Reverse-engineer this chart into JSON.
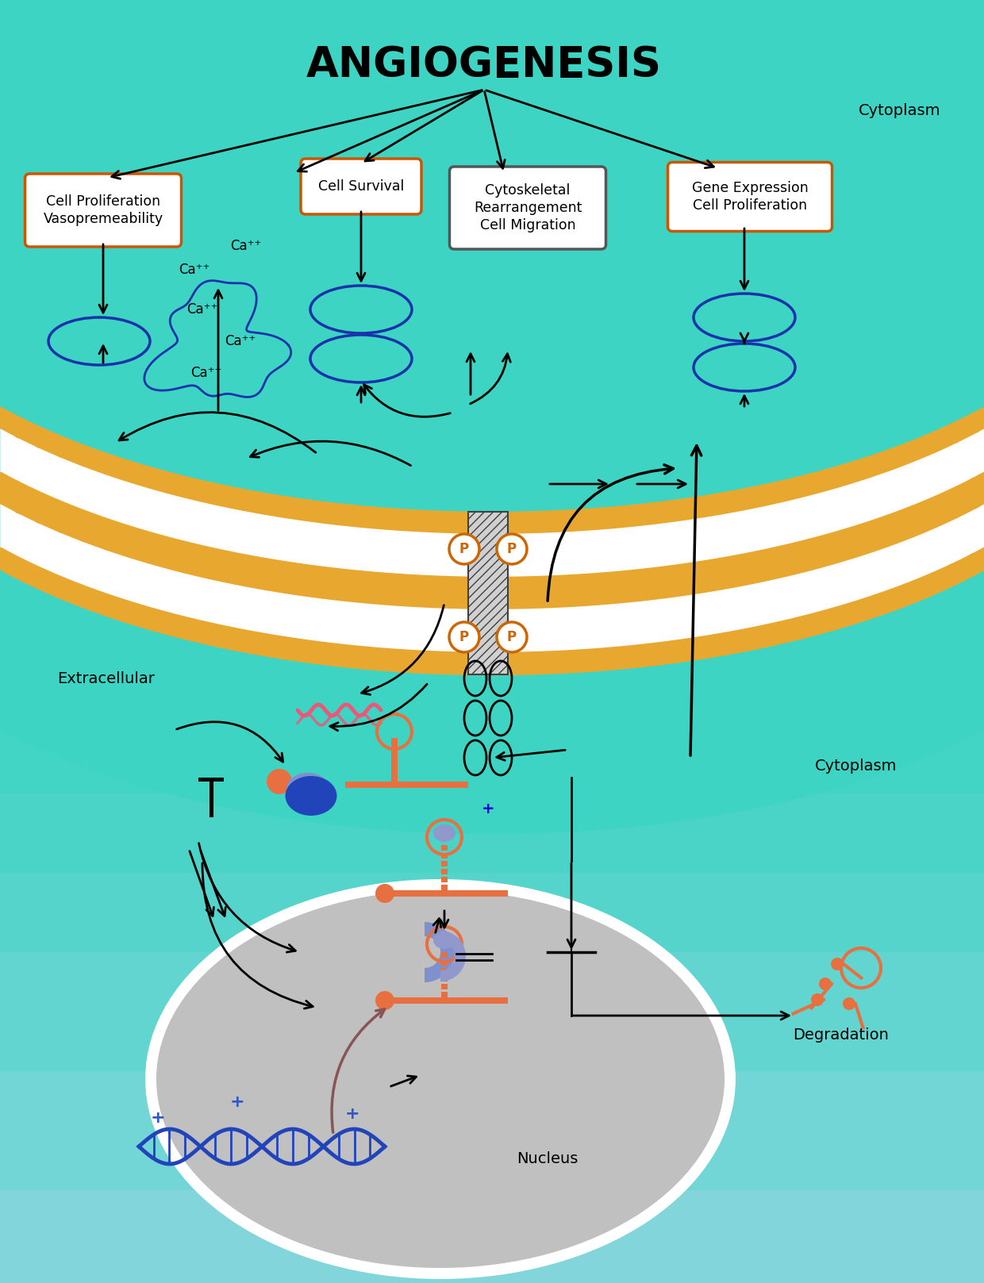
{
  "figw": 12.4,
  "figh": 16.17,
  "dpi": 100,
  "teal": "#3DD4C4",
  "light_blue_mid": "#7CCCE0",
  "light_blue_bot": "#A8D8E8",
  "membrane_gold": "#E8A830",
  "white": "#FFFFFF",
  "box_border_orange": "#CC5500",
  "box_border_gray": "#555555",
  "oval_fill": "#3DD4C4",
  "oval_border": "#1833AA",
  "cloud_border": "#1833AA",
  "P_border": "#CC6600",
  "receptor_gray": "#C0C0C0",
  "nucleus_fill": "#C0C0C0",
  "nucleus_edge": "#DDDDDD",
  "orange_dot": "#E87040",
  "blue_dark": "#2244BB",
  "blue_med": "#7080CC",
  "blue_mid": "#8898CC",
  "pink_mrna": "#EE5577",
  "dark_brown": "#885555",
  "title": "ANGIOGENESIS",
  "label_cytoplasm1": "Cytoplasm",
  "label_extracellular": "Extracellular",
  "label_cytoplasm2": "Cytoplasm",
  "label_nucleus": "Nucleus",
  "label_degradation": "Degradation",
  "box1_text": "Cell Proliferation\nVasopremeability",
  "box2_text": "Cell Survival",
  "box3_text": "Cytoskeletal\nRearrangement\nCell Migration",
  "box4_text": "Gene Expression\nCell Proliferation",
  "ca_texts": [
    "Ca⁺⁺",
    "Ca⁺⁺",
    "Ca⁺⁺",
    "Ca⁺⁺",
    "Ca⁺⁺"
  ]
}
